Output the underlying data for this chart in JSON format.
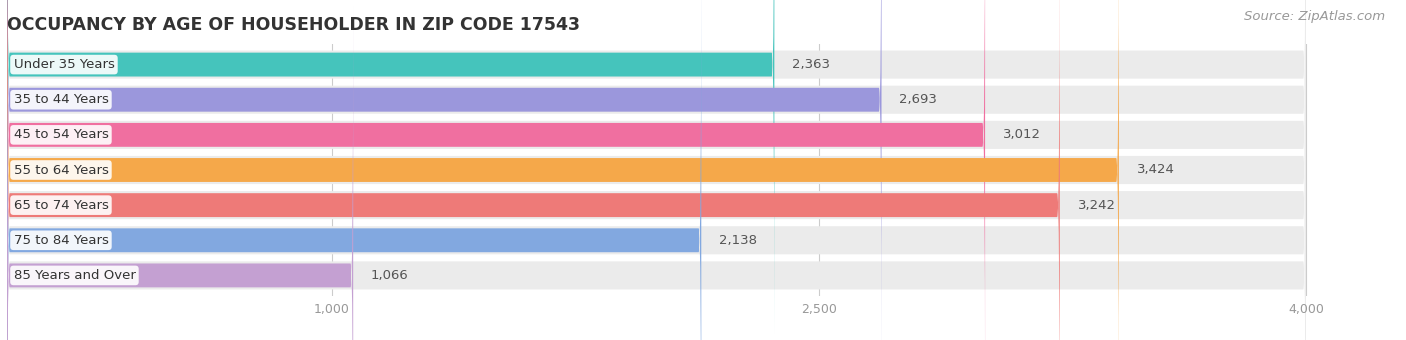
{
  "title": "OCCUPANCY BY AGE OF HOUSEHOLDER IN ZIP CODE 17543",
  "source": "Source: ZipAtlas.com",
  "categories": [
    "Under 35 Years",
    "35 to 44 Years",
    "45 to 54 Years",
    "55 to 64 Years",
    "65 to 74 Years",
    "75 to 84 Years",
    "85 Years and Over"
  ],
  "values": [
    2363,
    2693,
    3012,
    3424,
    3242,
    2138,
    1066
  ],
  "bar_colors": [
    "#45c4bc",
    "#9b97dc",
    "#f06fa0",
    "#f5a84a",
    "#ee7a78",
    "#82a8e0",
    "#c4a0d2"
  ],
  "bar_bg_color": "#ebebeb",
  "xlim": [
    0,
    4200
  ],
  "data_max": 4000,
  "xticks": [
    1000,
    2500,
    4000
  ],
  "title_fontsize": 12.5,
  "label_fontsize": 9.5,
  "value_fontsize": 9.5,
  "source_fontsize": 9.5,
  "background_color": "#ffffff"
}
